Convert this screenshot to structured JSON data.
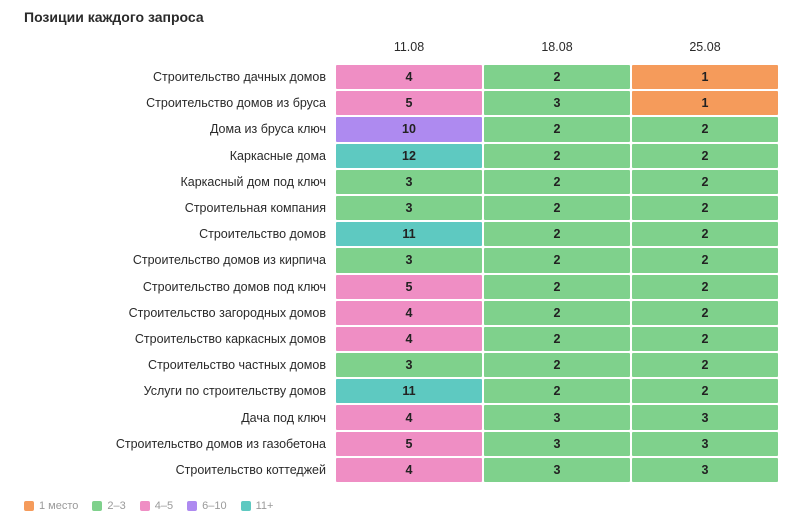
{
  "title": "Позиции каждого запроса",
  "colors": {
    "1": "#f59b5b",
    "2-3": "#7fd18c",
    "4-5": "#ef8ec4",
    "6-10": "#ae8af0",
    "11+": "#5ec9c1"
  },
  "legend": [
    {
      "label": "1 место",
      "key": "1"
    },
    {
      "label": "2–3",
      "key": "2-3"
    },
    {
      "label": "4–5",
      "key": "4-5"
    },
    {
      "label": "6–10",
      "key": "6-10"
    },
    {
      "label": "11+",
      "key": "11+"
    }
  ],
  "chart_data": {
    "type": "heatmap",
    "title": "Позиции каждого запроса",
    "columns": [
      "11.08",
      "18.08",
      "25.08"
    ],
    "rows": [
      {
        "query": "Строительство дачных домов",
        "values": [
          4,
          2,
          1
        ]
      },
      {
        "query": "Строительство домов из бруса",
        "values": [
          5,
          3,
          1
        ]
      },
      {
        "query": "Дома из бруса ключ",
        "values": [
          10,
          2,
          2
        ]
      },
      {
        "query": "Каркасные дома",
        "values": [
          12,
          2,
          2
        ]
      },
      {
        "query": "Каркасный дом под ключ",
        "values": [
          3,
          2,
          2
        ]
      },
      {
        "query": "Строительная компания",
        "values": [
          3,
          2,
          2
        ]
      },
      {
        "query": "Строительство домов",
        "values": [
          11,
          2,
          2
        ]
      },
      {
        "query": "Строительство домов из кирпича",
        "values": [
          3,
          2,
          2
        ]
      },
      {
        "query": "Строительство домов под ключ",
        "values": [
          5,
          2,
          2
        ]
      },
      {
        "query": "Строительство загородных домов",
        "values": [
          4,
          2,
          2
        ]
      },
      {
        "query": "Строительство каркасных домов",
        "values": [
          4,
          2,
          2
        ]
      },
      {
        "query": "Строительство частных домов",
        "values": [
          3,
          2,
          2
        ]
      },
      {
        "query": "Услуги по строительству домов",
        "values": [
          11,
          2,
          2
        ]
      },
      {
        "query": "Дача под ключ",
        "values": [
          4,
          3,
          3
        ]
      },
      {
        "query": "Строительство домов из газобетона",
        "values": [
          5,
          3,
          3
        ]
      },
      {
        "query": "Строительство коттеджей",
        "values": [
          4,
          3,
          3
        ]
      }
    ]
  }
}
